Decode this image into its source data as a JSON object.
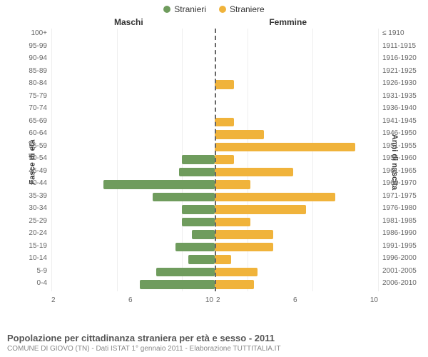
{
  "chart": {
    "type": "population-pyramid",
    "background": "#ffffff",
    "left_title": "Maschi",
    "right_title": "Femmine",
    "left_axis_title": "Fasce di età",
    "right_axis_title": "Anni di nascita",
    "x_max": 10,
    "x_ticks": [
      10,
      6,
      2,
      2,
      6,
      10
    ],
    "grid_color": "#eeeeee",
    "centerline_color": "#666666",
    "legend": [
      {
        "label": "Stranieri",
        "color": "#6f9c5d"
      },
      {
        "label": "Straniere",
        "color": "#f0b33b"
      }
    ],
    "male_color": "#6f9c5d",
    "female_color": "#f0b33b",
    "label_color": "#666666",
    "label_fontsize": 10,
    "rows": [
      {
        "age": "100+",
        "birth": "≤ 1910",
        "m": 0,
        "f": 0
      },
      {
        "age": "95-99",
        "birth": "1911-1915",
        "m": 0,
        "f": 0
      },
      {
        "age": "90-94",
        "birth": "1916-1920",
        "m": 0,
        "f": 0
      },
      {
        "age": "85-89",
        "birth": "1921-1925",
        "m": 0,
        "f": 0
      },
      {
        "age": "80-84",
        "birth": "1926-1930",
        "m": 0,
        "f": 1.2
      },
      {
        "age": "75-79",
        "birth": "1931-1935",
        "m": 0,
        "f": 0
      },
      {
        "age": "70-74",
        "birth": "1936-1940",
        "m": 0,
        "f": 0
      },
      {
        "age": "65-69",
        "birth": "1941-1945",
        "m": 0,
        "f": 1.2
      },
      {
        "age": "60-64",
        "birth": "1946-1950",
        "m": 0,
        "f": 3.0
      },
      {
        "age": "55-59",
        "birth": "1951-1955",
        "m": 0,
        "f": 8.6
      },
      {
        "age": "50-54",
        "birth": "1956-1960",
        "m": 2.0,
        "f": 1.2
      },
      {
        "age": "45-49",
        "birth": "1961-1965",
        "m": 2.2,
        "f": 4.8
      },
      {
        "age": "40-44",
        "birth": "1966-1970",
        "m": 6.8,
        "f": 2.2
      },
      {
        "age": "35-39",
        "birth": "1971-1975",
        "m": 3.8,
        "f": 7.4
      },
      {
        "age": "30-34",
        "birth": "1976-1980",
        "m": 2.0,
        "f": 5.6
      },
      {
        "age": "25-29",
        "birth": "1981-1985",
        "m": 2.0,
        "f": 2.2
      },
      {
        "age": "20-24",
        "birth": "1986-1990",
        "m": 1.4,
        "f": 3.6
      },
      {
        "age": "15-19",
        "birth": "1991-1995",
        "m": 2.4,
        "f": 3.6
      },
      {
        "age": "10-14",
        "birth": "1996-2000",
        "m": 1.6,
        "f": 1.0
      },
      {
        "age": "5-9",
        "birth": "2001-2005",
        "m": 3.6,
        "f": 2.6
      },
      {
        "age": "0-4",
        "birth": "2006-2010",
        "m": 4.6,
        "f": 2.4
      }
    ]
  },
  "caption": {
    "title": "Popolazione per cittadinanza straniera per età e sesso - 2011",
    "subtitle": "COMUNE DI GIOVO (TN) - Dati ISTAT 1° gennaio 2011 - Elaborazione TUTTITALIA.IT"
  }
}
